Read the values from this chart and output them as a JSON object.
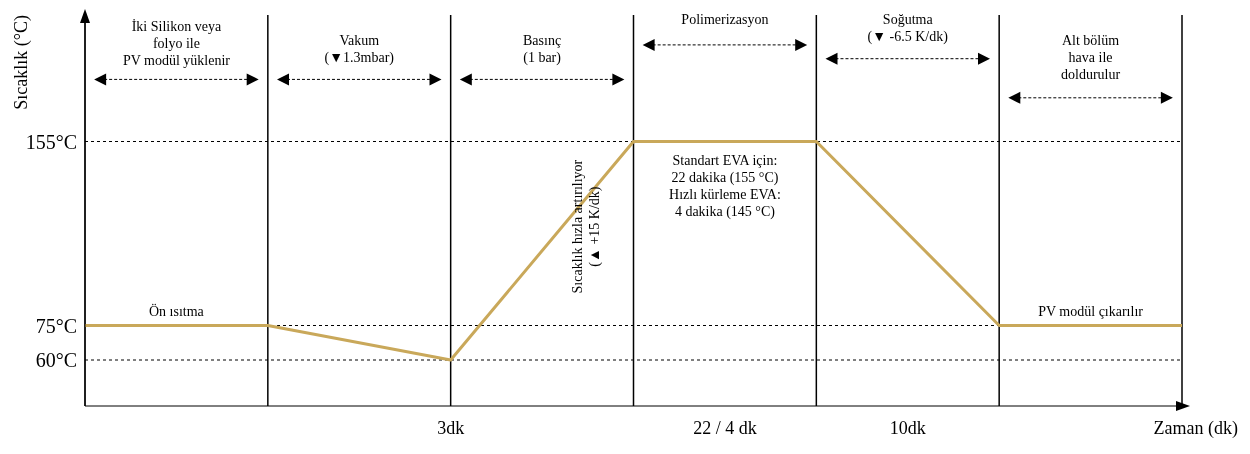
{
  "chart_data": {
    "type": "line",
    "xlabel": "Zaman (dk)",
    "ylabel": "Sıcaklık (°C)",
    "categories": [
      null,
      null,
      null,
      null,
      null,
      null,
      null
    ],
    "series": [
      {
        "color": "#c9a85a",
        "values": [
          75,
          75,
          60,
          155,
          155,
          75,
          75
        ]
      }
    ],
    "ylim": [
      40,
      210
    ],
    "yticks": [
      {
        "value": 60,
        "label": "60°C"
      },
      {
        "value": 75,
        "label": "75°C"
      },
      {
        "value": 155,
        "label": "155°C"
      }
    ],
    "ref_lines": [
      {
        "axis": "y",
        "value": 155,
        "line_style": "dotted"
      },
      {
        "axis": "y",
        "value": 75,
        "line_style": "dotted"
      },
      {
        "axis": "y",
        "value": 60,
        "line_style": "dotted"
      }
    ],
    "annotations": [
      "İki Silikon veya\nfolyo ile\nPV modül yüklenir",
      "Vakum\n(▼1.3mbar)",
      "Basınç\n(1 bar)",
      "Polimerizasyon",
      "Standart EVA için:\n22 dakika (155 °C)\nHızlı kürleme EVA:\n4 dakika (145 °C)",
      "Soğutma\n(▼ -6.5 K/dk)",
      "Alt bölüm\nhava ile\ndoldurulur",
      "Ön ısıtma",
      "Sıcaklık hızla artırılıyor\n(▲ +15 K/dk)",
      "PV modül çıkarılır",
      "3dk",
      "22 / 4 dk",
      "10dk"
    ],
    "grid": "x",
    "legend": false,
    "marker": "none",
    "line_style": "solid"
  }
}
